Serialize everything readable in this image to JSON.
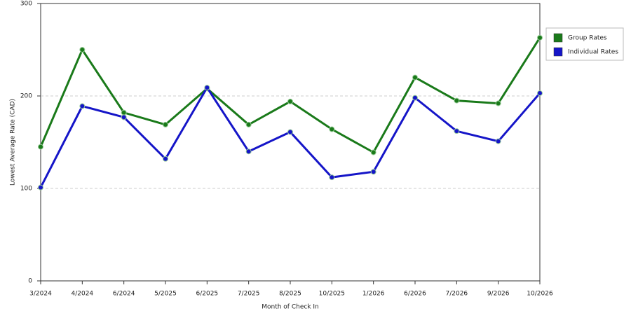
{
  "chart_data": {
    "type": "line",
    "xlabel": "Month of Check In",
    "ylabel": "Lowest Average Rate (CAD)",
    "categories": [
      "3/2024",
      "4/2024",
      "6/2024",
      "5/2025",
      "6/2025",
      "7/2025",
      "8/2025",
      "10/2025",
      "1/2026",
      "6/2026",
      "7/2026",
      "9/2026",
      "10/2026"
    ],
    "series": [
      {
        "name": "Group Rates",
        "color": "#1a7a1a",
        "values": [
          145,
          250,
          182,
          169,
          208,
          169,
          194,
          164,
          139,
          220,
          195,
          192,
          263
        ]
      },
      {
        "name": "Individual Rates",
        "color": "#1515c8",
        "values": [
          101,
          189,
          177,
          132,
          209,
          140,
          161,
          112,
          118,
          198,
          162,
          151,
          203
        ]
      }
    ],
    "ylim": [
      0,
      300
    ],
    "yticks": [
      0,
      100,
      200,
      300
    ],
    "grid": true,
    "legend": "right"
  }
}
